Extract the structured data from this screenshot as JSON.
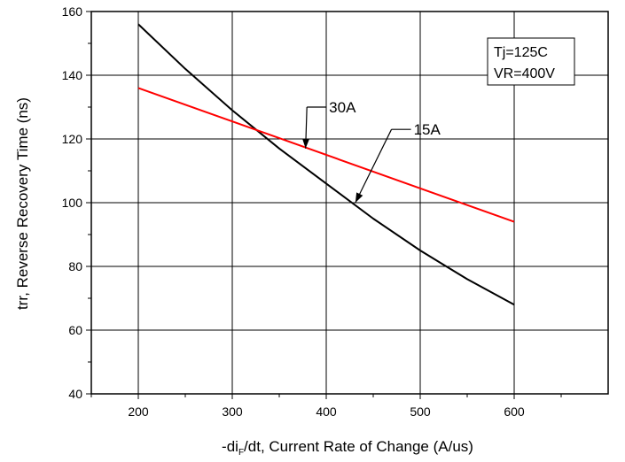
{
  "chart_data": {
    "type": "line",
    "title": "",
    "xlabel_prefix": "-di",
    "xlabel_sub": "F",
    "xlabel_suffix": "/dt, Current Rate of Change (A/us)",
    "ylabel": "trr, Reverse Recovery Time (ns)",
    "xlim": [
      150,
      700
    ],
    "ylim": [
      40,
      160
    ],
    "x_ticks": [
      200,
      300,
      400,
      500,
      600
    ],
    "y_ticks": [
      40,
      60,
      80,
      100,
      120,
      140,
      160
    ],
    "grid": true,
    "conditions": [
      "Tj=125C",
      "VR=400V"
    ],
    "series": [
      {
        "name": "15A",
        "color": "#000000",
        "x": [
          200,
          250,
          300,
          350,
          400,
          450,
          500,
          550,
          600
        ],
        "y": [
          156,
          142,
          129,
          117,
          106,
          95,
          85,
          76,
          68
        ]
      },
      {
        "name": "30A",
        "color": "#ff0000",
        "x": [
          200,
          600
        ],
        "y": [
          136,
          94
        ]
      }
    ],
    "annotations": [
      {
        "label": "30A",
        "text_x": 403,
        "text_y": 130,
        "arrow_x": 378,
        "arrow_y": 117
      },
      {
        "label": "15A",
        "text_x": 493,
        "text_y": 123,
        "arrow_x": 431,
        "arrow_y": 100
      }
    ]
  }
}
